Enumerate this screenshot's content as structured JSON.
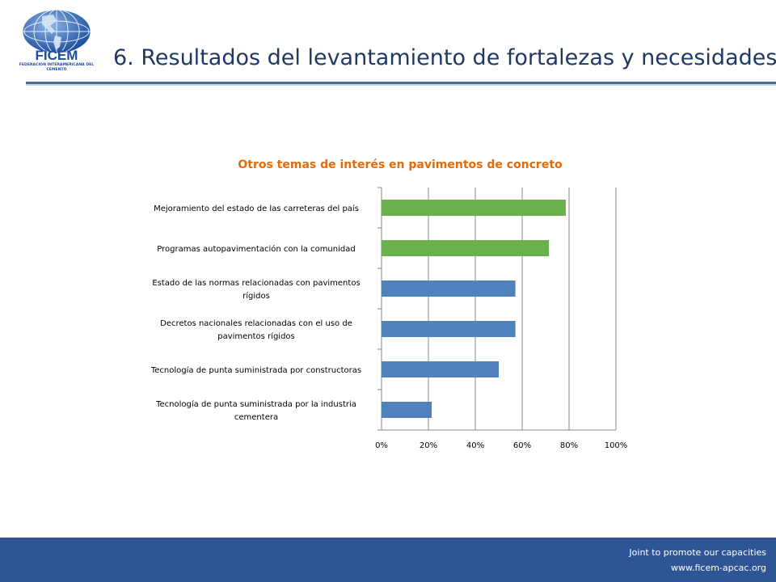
{
  "header": {
    "logo_text": "FICEM",
    "logo_org": "FEDERACIÓN INTERAMERICANA DEL CEMENTO",
    "title": "6. Resultados del levantamiento de fortalezas y necesidades"
  },
  "colors": {
    "title": "#1f3864",
    "accent_orange": "#e36c09",
    "bar_green": "#6ab04c",
    "bar_blue": "#4f81bd",
    "footer": "#2f5597"
  },
  "chart_data": {
    "type": "bar",
    "orientation": "horizontal",
    "title": "Otros temas de interés en pavimentos de concreto",
    "categories": [
      "Mejoramiento del estado de las carreteras del país",
      "Programas autopavimentación con la comunidad",
      "Estado de las normas relacionadas con pavimentos rígidos",
      "Decretos nacionales relacionadas con el uso de pavimentos rígidos",
      "Tecnología de punta suministrada por constructoras",
      "Tecnología de punta suministrada por la industria cementera"
    ],
    "values": [
      0.786,
      0.714,
      0.571,
      0.571,
      0.5,
      0.214
    ],
    "bar_colors": [
      "#6ab04c",
      "#6ab04c",
      "#4f81bd",
      "#4f81bd",
      "#4f81bd",
      "#4f81bd"
    ],
    "xlim": [
      0,
      1
    ],
    "xticks": [
      "0%",
      "20%",
      "40%",
      "60%",
      "80%",
      "100%"
    ],
    "grid": true,
    "legend": false
  },
  "footer": {
    "line1": "Joint  to promote our capacities",
    "line2": "www.ficem-apcac.org"
  }
}
